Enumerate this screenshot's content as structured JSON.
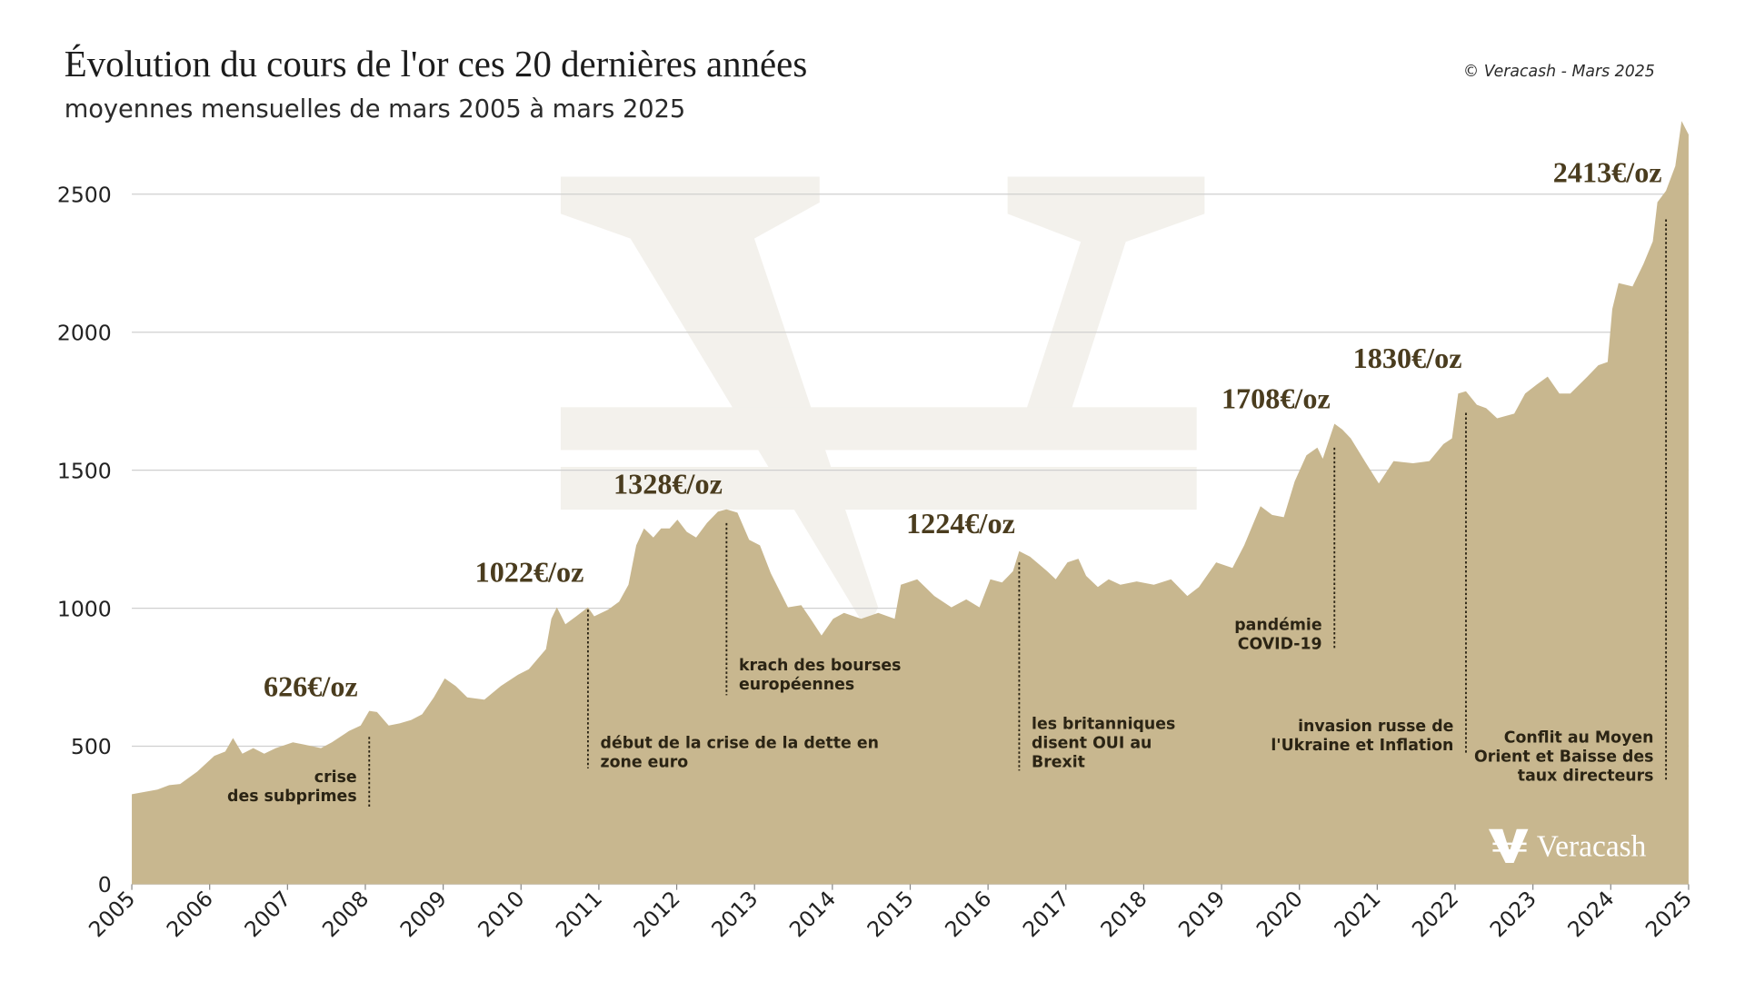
{
  "chart_data": {
    "type": "area",
    "title": "Évolution du cours de l'or ces 20 dernières années",
    "subtitle": "moyennes mensuelles de mars 2005 à mars 2025",
    "source": "© Veracash - Mars 2025",
    "logo": "Veracash",
    "color": "#c8b78f",
    "grid": true,
    "xlim": [
      2005,
      2025
    ],
    "xticks": [
      2005,
      2006,
      2007,
      2008,
      2009,
      2010,
      2011,
      2012,
      2013,
      2014,
      2015,
      2016,
      2017,
      2018,
      2019,
      2020,
      2021,
      2022,
      2023,
      2024,
      2025
    ],
    "ylim": [
      0,
      2800
    ],
    "yticks": [
      0,
      500,
      1000,
      1500,
      2000,
      2500
    ],
    "x": [
      2005.0,
      2005.33,
      2005.48,
      2005.62,
      2005.84,
      2006.06,
      2006.2,
      2006.3,
      2006.42,
      2006.56,
      2006.7,
      2006.85,
      2007.07,
      2007.21,
      2007.43,
      2007.57,
      2007.79,
      2007.94,
      2008.05,
      2008.15,
      2008.3,
      2008.44,
      2008.59,
      2008.73,
      2008.88,
      2009.02,
      2009.16,
      2009.31,
      2009.53,
      2009.74,
      2009.96,
      2010.1,
      2010.32,
      2010.39,
      2010.46,
      2010.57,
      2010.71,
      2010.86,
      2010.94,
      2011.12,
      2011.26,
      2011.38,
      2011.48,
      2011.58,
      2011.7,
      2011.8,
      2011.91,
      2012.01,
      2012.13,
      2012.25,
      2012.39,
      2012.53,
      2012.64,
      2012.78,
      2012.93,
      2013.07,
      2013.21,
      2013.43,
      2013.6,
      2013.72,
      2013.86,
      2014.01,
      2014.15,
      2014.37,
      2014.59,
      2014.8,
      2014.88,
      2015.09,
      2015.31,
      2015.53,
      2015.72,
      2015.89,
      2016.03,
      2016.18,
      2016.32,
      2016.4,
      2016.54,
      2016.76,
      2016.87,
      2017.02,
      2017.16,
      2017.26,
      2017.41,
      2017.55,
      2017.7,
      2017.91,
      2018.13,
      2018.35,
      2018.56,
      2018.71,
      2018.93,
      2019.14,
      2019.29,
      2019.5,
      2019.65,
      2019.8,
      2019.94,
      2020.09,
      2020.23,
      2020.3,
      2020.45,
      2020.55,
      2020.66,
      2020.84,
      2021.02,
      2021.21,
      2021.46,
      2021.67,
      2021.85,
      2021.96,
      2022.04,
      2022.14,
      2022.28,
      2022.4,
      2022.54,
      2022.76,
      2022.9,
      2023.05,
      2023.19,
      2023.34,
      2023.48,
      2023.7,
      2023.84,
      2023.96,
      2024.02,
      2024.1,
      2024.28,
      2024.42,
      2024.54,
      2024.6,
      2024.71,
      2024.83,
      2024.91,
      2025.0
    ],
    "values": [
      326,
      343,
      359,
      363,
      408,
      465,
      481,
      530,
      473,
      493,
      473,
      493,
      514,
      506,
      493,
      514,
      555,
      575,
      628,
      624,
      575,
      583,
      595,
      616,
      677,
      746,
      718,
      677,
      669,
      718,
      759,
      779,
      852,
      962,
      1003,
      942,
      971,
      1003,
      971,
      995,
      1024,
      1085,
      1228,
      1289,
      1256,
      1289,
      1289,
      1321,
      1277,
      1256,
      1309,
      1350,
      1358,
      1346,
      1248,
      1228,
      1126,
      1003,
      1011,
      962,
      901,
      962,
      983,
      962,
      983,
      962,
      1085,
      1105,
      1044,
      1003,
      1032,
      1003,
      1105,
      1093,
      1134,
      1207,
      1187,
      1134,
      1105,
      1166,
      1179,
      1117,
      1077,
      1105,
      1085,
      1097,
      1085,
      1105,
      1044,
      1077,
      1166,
      1146,
      1228,
      1370,
      1338,
      1330,
      1460,
      1554,
      1582,
      1542,
      1668,
      1648,
      1615,
      1533,
      1452,
      1533,
      1525,
      1533,
      1595,
      1615,
      1778,
      1786,
      1737,
      1725,
      1688,
      1705,
      1778,
      1811,
      1839,
      1778,
      1778,
      1839,
      1880,
      1892,
      2084,
      2178,
      2166,
      2247,
      2329,
      2471,
      2512,
      2602,
      2765,
      2716
    ],
    "annotations": [
      {
        "x": 2008.05,
        "price_label": "626€/oz",
        "text": [
          "crise",
          "des subprimes"
        ]
      },
      {
        "x": 2010.86,
        "price_label": "1022€/oz",
        "text": [
          "début de la crise de la dette en",
          "zone euro"
        ]
      },
      {
        "x": 2012.64,
        "price_label": "1328€/oz",
        "text": [
          "krach des bourses",
          "européennes"
        ]
      },
      {
        "x": 2016.4,
        "price_label": "1224€/oz",
        "text": [
          "les britanniques",
          "disent OUI au",
          "Brexit"
        ]
      },
      {
        "x": 2020.45,
        "price_label": "1708€/oz",
        "text": [
          "pandémie",
          "COVID-19"
        ]
      },
      {
        "x": 2022.14,
        "price_label": "1830€/oz",
        "text": [
          "invasion russe de",
          "l'Ukraine et Inflation"
        ]
      },
      {
        "x": 2024.71,
        "price_label": "2413€/oz",
        "text": [
          "Conflit au Moyen",
          "Orient et Baisse des",
          "taux directeurs"
        ]
      }
    ]
  }
}
